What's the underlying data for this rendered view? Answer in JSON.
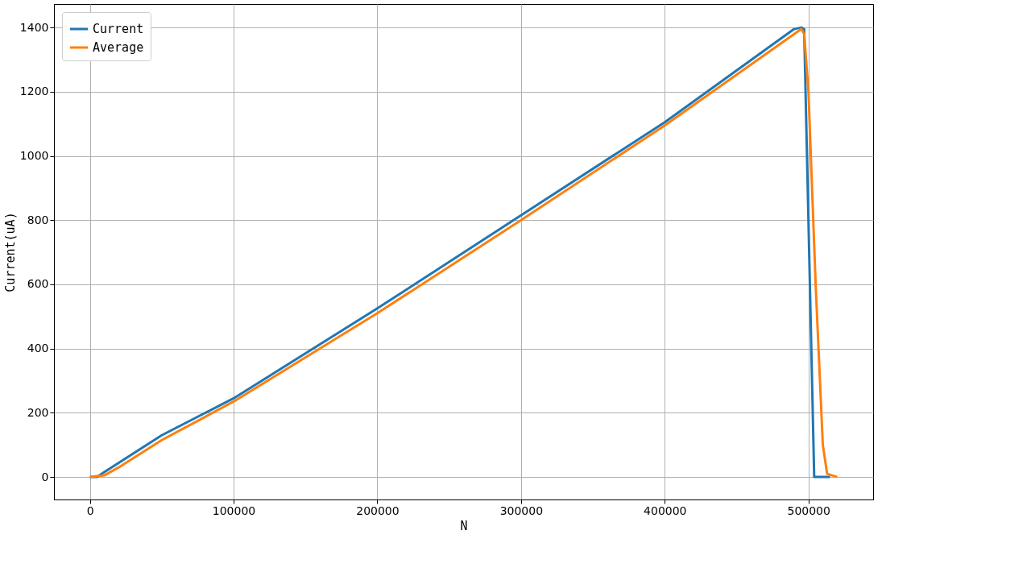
{
  "chart_data": {
    "type": "line",
    "xlabel": "N",
    "ylabel": "Current(uA)",
    "xlim": [
      -25000,
      545000
    ],
    "xticks": [
      0,
      100000,
      200000,
      300000,
      400000,
      500000
    ],
    "ylim": [
      -70,
      1473
    ],
    "yticks": [
      0,
      200,
      400,
      600,
      800,
      1000,
      1200,
      1400
    ],
    "grid": true,
    "legend": "top left",
    "series": [
      {
        "name": "Current",
        "color": "#1f77b4",
        "x": [
          0,
          5000,
          10000,
          50000,
          100000,
          200000,
          300000,
          400000,
          490000,
          495000,
          497000,
          504000,
          515000
        ],
        "values": [
          0,
          0,
          15,
          130,
          245,
          525,
          815,
          1105,
          1395,
          1400,
          1395,
          0,
          0
        ]
      },
      {
        "name": "Average",
        "color": "#ff7f0e",
        "x": [
          0,
          10000,
          20000,
          50000,
          100000,
          200000,
          300000,
          400000,
          495000,
          497000,
          500000,
          505000,
          510000,
          513000,
          520000
        ],
        "values": [
          0,
          5,
          30,
          115,
          235,
          510,
          800,
          1095,
          1395,
          1380,
          1200,
          600,
          100,
          10,
          0
        ]
      }
    ]
  }
}
